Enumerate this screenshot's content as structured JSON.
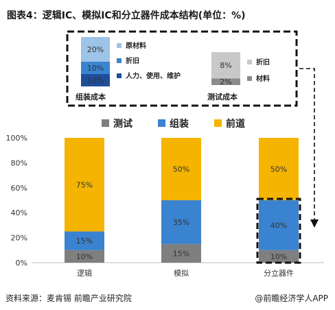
{
  "title": "图表4：逻辑IC、模拟IC和分立器件成本结构(单位：%)",
  "footer": {
    "source": "资料来源：麦肯锡 前瞻产业研究院",
    "brand": "@前瞻经济学人APP"
  },
  "inset": {
    "assembly": {
      "label": "组装成本",
      "segments": [
        {
          "name": "原材料",
          "value": 20,
          "value_label": "20%",
          "color": "#9dc3e6"
        },
        {
          "name": "折旧",
          "value": 10,
          "value_label": "10%",
          "color": "#3a83d0"
        },
        {
          "name": "人力、使用、维护",
          "value": 10,
          "value_label": "10%",
          "color": "#1f4e99"
        }
      ]
    },
    "testing": {
      "label": "测试成本",
      "segments": [
        {
          "name": "折旧",
          "value": 8,
          "value_label": "8%",
          "color": "#c8c8c8"
        },
        {
          "name": "材料",
          "value": 2,
          "value_label": "2%",
          "color": "#8c8c8c"
        }
      ]
    }
  },
  "chart_data": {
    "type": "bar",
    "stacked": true,
    "categories": [
      "逻辑",
      "模拟",
      "分立器件"
    ],
    "series": [
      {
        "name": "测试",
        "values": [
          10,
          15,
          10
        ],
        "color": "#7f7f7f"
      },
      {
        "name": "组装",
        "values": [
          15,
          35,
          40
        ],
        "color": "#3a83d0"
      },
      {
        "name": "前道",
        "values": [
          75,
          50,
          50
        ],
        "color": "#f5b400"
      }
    ],
    "ylim": [
      0,
      100
    ],
    "yticks": [
      "0%",
      "20%",
      "40%",
      "60%",
      "80%",
      "100%"
    ],
    "legend_position": "top",
    "grid": false
  }
}
